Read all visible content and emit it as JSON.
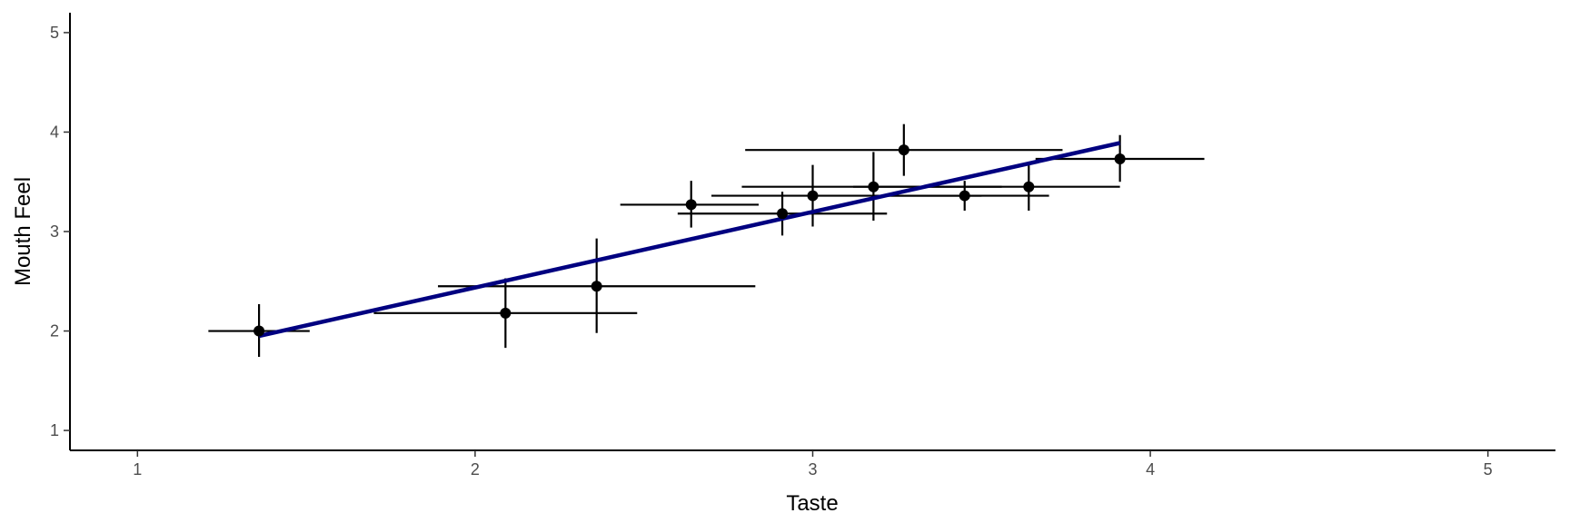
{
  "chart_data": {
    "type": "scatter",
    "xlabel": "Taste",
    "ylabel": "Mouth Feel",
    "xlim": [
      0.8,
      5.2
    ],
    "ylim": [
      0.8,
      5.2
    ],
    "x_ticks": [
      1,
      2,
      3,
      4,
      5
    ],
    "y_ticks": [
      1,
      2,
      3,
      4,
      5
    ],
    "grid": false,
    "colors": {
      "points": "#000000",
      "fit_line": "#000080",
      "axis": "#000000"
    },
    "points": [
      {
        "x": 1.36,
        "y": 2.0,
        "x_err": [
          1.21,
          1.51
        ],
        "y_err": [
          1.74,
          2.27
        ]
      },
      {
        "x": 2.09,
        "y": 2.18,
        "x_err": [
          1.7,
          2.48
        ],
        "y_err": [
          1.83,
          2.53
        ]
      },
      {
        "x": 2.36,
        "y": 2.45,
        "x_err": [
          1.89,
          2.83
        ],
        "y_err": [
          1.98,
          2.93
        ]
      },
      {
        "x": 2.64,
        "y": 3.27,
        "x_err": [
          2.43,
          2.84
        ],
        "y_err": [
          3.04,
          3.51
        ]
      },
      {
        "x": 2.91,
        "y": 3.18,
        "x_err": [
          2.6,
          3.22
        ],
        "y_err": [
          2.96,
          3.4
        ]
      },
      {
        "x": 3.0,
        "y": 3.36,
        "x_err": [
          2.7,
          3.5
        ],
        "y_err": [
          3.05,
          3.67
        ]
      },
      {
        "x": 3.18,
        "y": 3.45,
        "x_err": [
          2.79,
          3.56
        ],
        "y_err": [
          3.11,
          3.8
        ]
      },
      {
        "x": 3.27,
        "y": 3.82,
        "x_err": [
          2.8,
          3.74
        ],
        "y_err": [
          3.56,
          4.08
        ]
      },
      {
        "x": 3.45,
        "y": 3.36,
        "x_err": [
          3.2,
          3.7
        ],
        "y_err": [
          3.21,
          3.51
        ]
      },
      {
        "x": 3.64,
        "y": 3.45,
        "x_err": [
          3.12,
          3.91
        ],
        "y_err": [
          3.21,
          3.7
        ]
      },
      {
        "x": 3.91,
        "y": 3.73,
        "x_err": [
          3.66,
          4.16
        ],
        "y_err": [
          3.5,
          3.97
        ]
      }
    ],
    "fit_line": {
      "x": [
        1.36,
        3.91
      ],
      "y": [
        1.95,
        3.89
      ]
    }
  }
}
